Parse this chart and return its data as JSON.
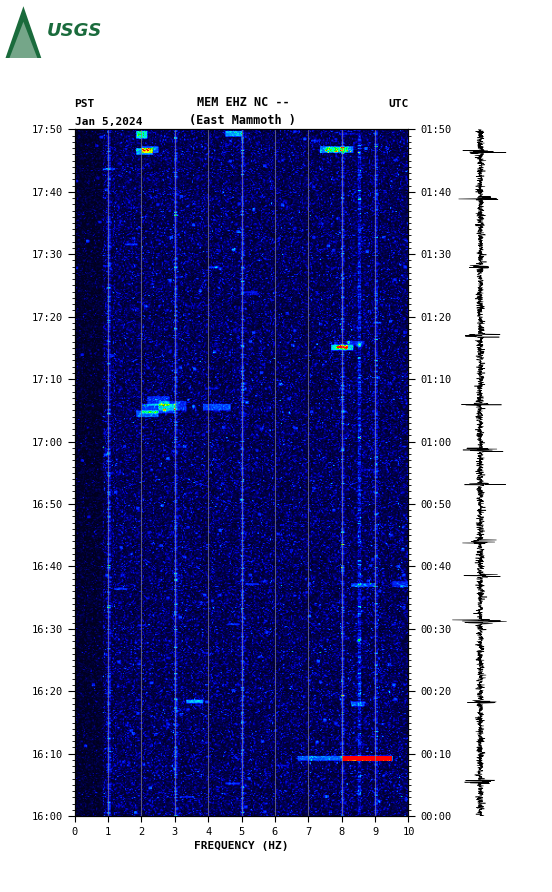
{
  "title_line1": "MEM EHZ NC --",
  "title_line2": "(East Mammoth )",
  "date_label": "Jan 5,2024",
  "pst_label": "PST",
  "utc_label": "UTC",
  "xlabel": "FREQUENCY (HZ)",
  "freq_min": 0,
  "freq_max": 10,
  "left_tick_labels": [
    "16:00",
    "16:10",
    "16:20",
    "16:30",
    "16:40",
    "16:50",
    "17:00",
    "17:10",
    "17:20",
    "17:30",
    "17:40",
    "17:50"
  ],
  "right_tick_labels": [
    "00:00",
    "00:10",
    "00:20",
    "00:30",
    "00:40",
    "00:50",
    "01:00",
    "01:10",
    "01:20",
    "01:30",
    "01:40",
    "01:50"
  ],
  "vtick_positions": [
    0,
    1,
    2,
    3,
    4,
    5,
    6,
    7,
    8,
    9,
    10
  ],
  "vgrid_positions": [
    1,
    2,
    3,
    4,
    5,
    6,
    7,
    8,
    9
  ],
  "usgs_green": "#1a6b3c",
  "fig_width": 5.52,
  "fig_height": 8.92
}
